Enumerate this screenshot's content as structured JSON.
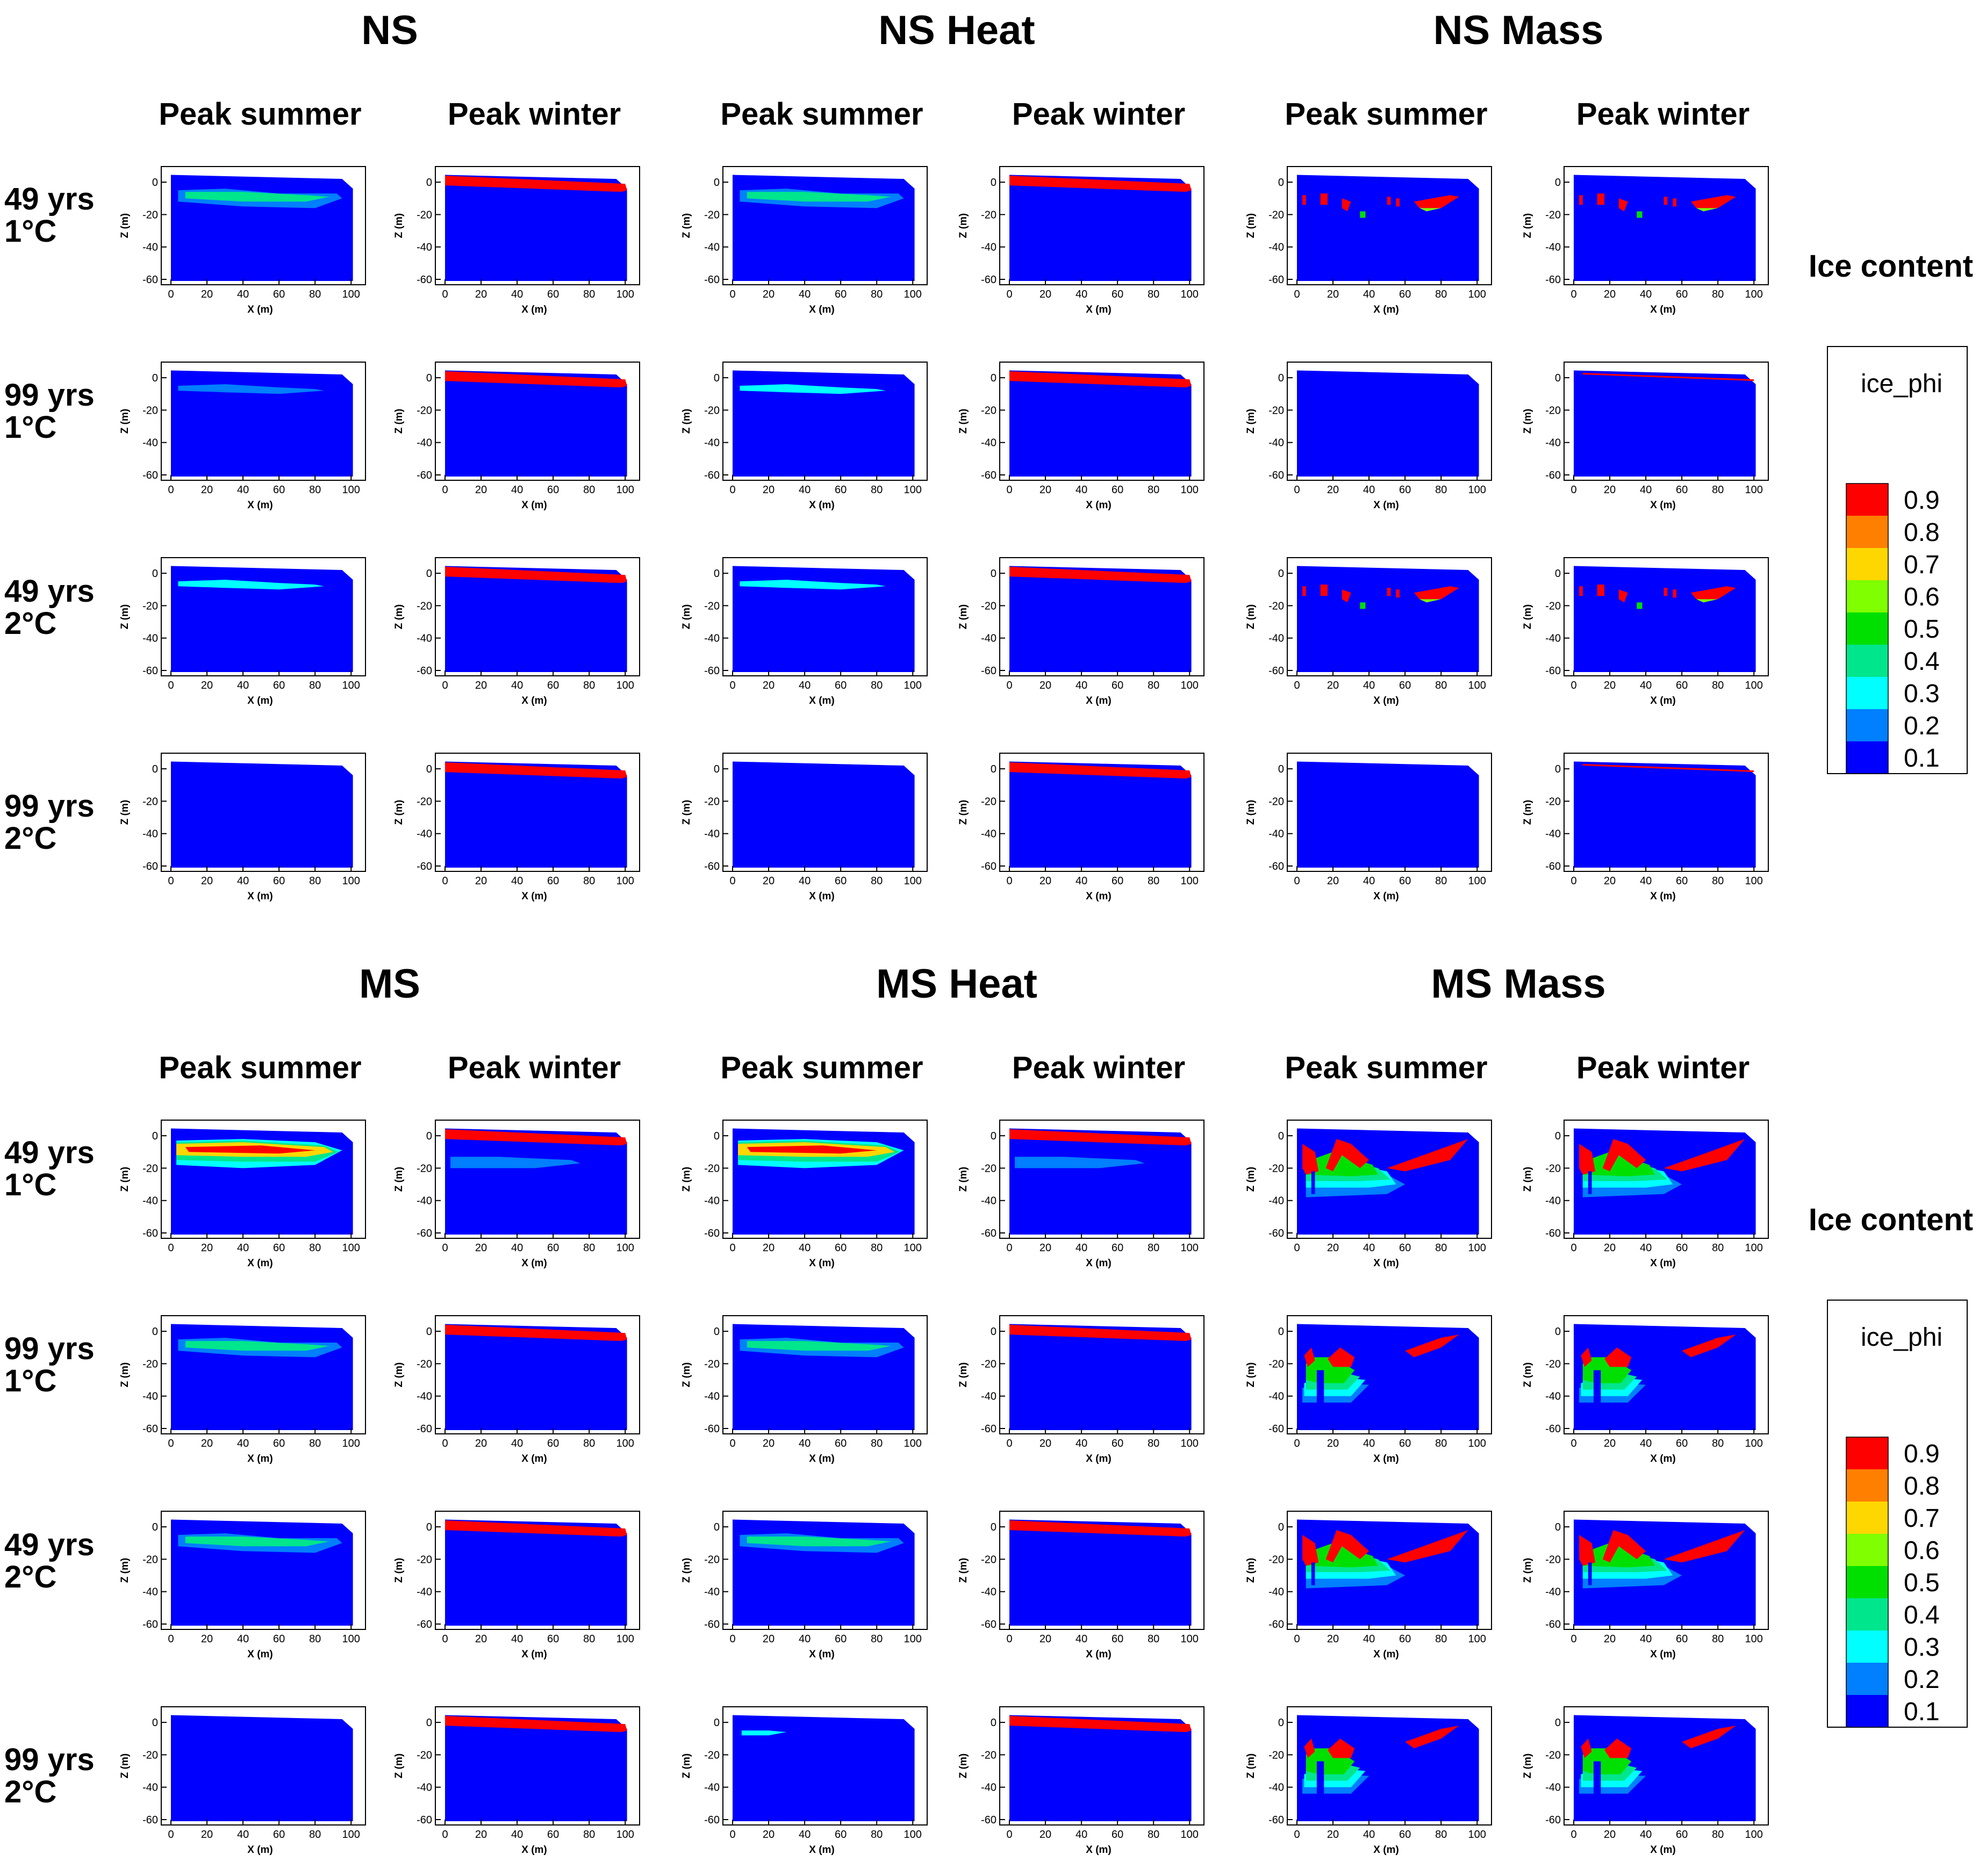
{
  "chart_data": {
    "type": "heatmap",
    "description_label": "Ice content",
    "colorbar": {
      "title": "Ice content",
      "variable": "ice_phi",
      "levels": [
        0.9,
        0.8,
        0.7,
        0.6,
        0.5,
        0.4,
        0.3,
        0.2,
        0.1
      ],
      "colors": [
        "#ff0000",
        "#ff7f00",
        "#ffd700",
        "#7fff00",
        "#00e000",
        "#00e68c",
        "#00ffff",
        "#007fff",
        "#0000ff"
      ]
    },
    "axes": {
      "xlabel": "X (m)",
      "ylabel": "Z (m)",
      "xlim": [
        0,
        105
      ],
      "ylim": [
        -60,
        5
      ],
      "xticks": [
        "0",
        "20",
        "40",
        "60",
        "80",
        "100"
      ],
      "yticks": [
        "0",
        "-20",
        "-40",
        "-60"
      ]
    },
    "seasons": [
      "Peak summer",
      "Peak winter"
    ],
    "rows": [
      {
        "line1": "49 yrs",
        "line2": "1°C"
      },
      {
        "line1": "99 yrs",
        "line2": "1°C"
      },
      {
        "line1": "49 yrs",
        "line2": "2°C"
      },
      {
        "line1": "99 yrs",
        "line2": "2°C"
      }
    ],
    "blocks": [
      {
        "title": "NS",
        "groups": [
          {
            "title": "NS",
            "key": "NS"
          },
          {
            "title": "NS Heat",
            "key": "NSH"
          },
          {
            "title": "NS Mass",
            "key": "NSM"
          }
        ]
      },
      {
        "title": "MS",
        "groups": [
          {
            "title": "MS",
            "key": "MS"
          },
          {
            "title": "MS Heat",
            "key": "MSH"
          },
          {
            "title": "MS Mass",
            "key": "MSM"
          }
        ]
      }
    ]
  }
}
